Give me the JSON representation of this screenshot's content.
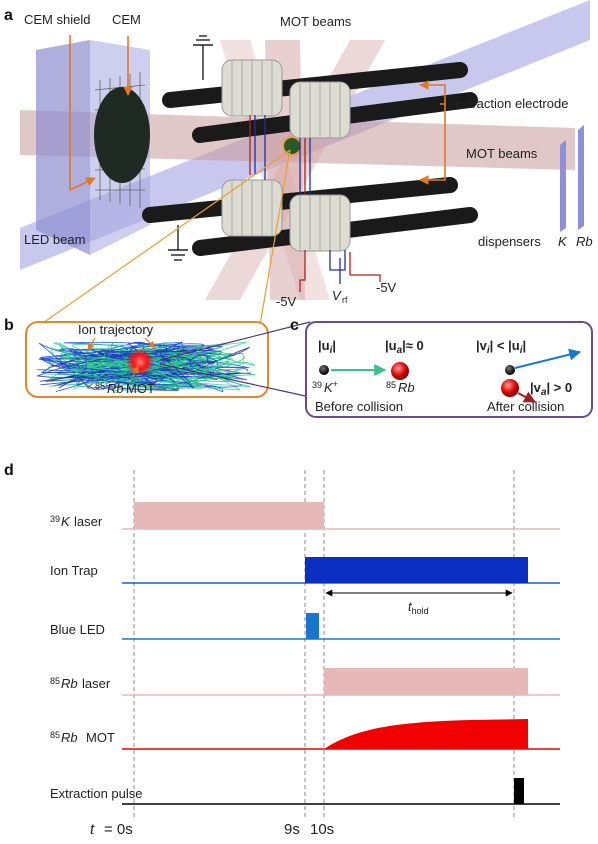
{
  "panels": {
    "a": "a",
    "b": "b",
    "c": "c",
    "d": "d"
  },
  "panel_a": {
    "cem_shield": "CEM shield",
    "cem": "CEM",
    "mot_beams_top": "MOT beams",
    "extraction_electrode": "extraction electrode",
    "mot_beams_right": "MOT beams",
    "led_beam": "LED beam",
    "dispensers": "dispensers",
    "disp_k": "K",
    "disp_rb": "Rb",
    "volt_left": "-5V",
    "vrf": "V",
    "vrf_sub": "rf",
    "volt_right": "-5V"
  },
  "panel_b": {
    "ion_trajectory": "Ion trajectory",
    "mot_sup": "85",
    "mot_rb": "Rb",
    "mot_label": "MOT"
  },
  "panel_c": {
    "ui": "|u",
    "ui_sub": "i",
    "ui_end": "|",
    "ua": "|u",
    "ua_sub": "a",
    "ua_end": "|≈ 0",
    "k_sup": "39",
    "k_label": "K",
    "k_charge": "+",
    "rb_sup": "85",
    "rb_label": "Rb",
    "before": "Before collision",
    "vi": "|v",
    "vi_sub": "i",
    "vi_mid": "| < |u",
    "vi_sub2": "i",
    "vi_end": "|",
    "va": "|v",
    "va_sub": "a",
    "va_end": "| > 0",
    "after": "After collision"
  },
  "panel_d": {
    "rows": [
      {
        "sup": "39",
        "species": "K",
        "label": "laser",
        "color": "#e6b8b8"
      },
      {
        "sup": "",
        "species": "",
        "label": "Ion Trap",
        "color": "#0a2fc2"
      },
      {
        "sup": "",
        "species": "",
        "label": "Blue LED",
        "color": "#1a76cc"
      },
      {
        "sup": "85",
        "species": "Rb",
        "label": "laser",
        "color": "#e6b8b8"
      },
      {
        "sup": "85",
        "species": "Rb",
        "label": "MOT",
        "color": "#f00000"
      },
      {
        "sup": "",
        "species": "",
        "label": "Extraction pulse",
        "color": "#000000"
      }
    ],
    "t_hold": "t",
    "t_hold_sub": "hold",
    "time_t": "t",
    "time_0": "= 0s",
    "time_9": "9s",
    "time_10": "10s"
  }
}
